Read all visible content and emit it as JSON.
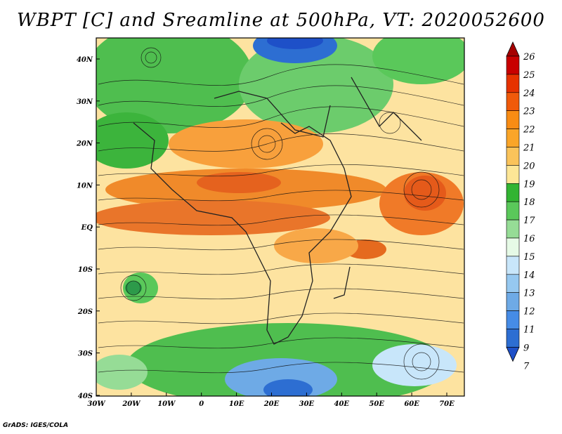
{
  "title": "WBPT [C] and Sreamline at 500hPa, VT: 2020052600",
  "footer": "GrADS: IGES/COLA",
  "lat_labels": [
    "40N",
    "30N",
    "20N",
    "10N",
    "EQ",
    "10S",
    "20S",
    "30S",
    "40S"
  ],
  "lon_labels": [
    "30W",
    "20W",
    "10W",
    "0",
    "10E",
    "20E",
    "30E",
    "40E",
    "50E",
    "60E",
    "70E"
  ],
  "colorbar": {
    "levels": [
      "26",
      "25",
      "24",
      "23",
      "22",
      "21",
      "20",
      "19",
      "18",
      "17",
      "16",
      "15",
      "14",
      "13",
      "12",
      "11",
      "9",
      "7"
    ],
    "colors": [
      "#a50000",
      "#c80000",
      "#e63200",
      "#f05a0a",
      "#f88c14",
      "#faa528",
      "#fac35a",
      "#fde696",
      "#32b432",
      "#5ac85a",
      "#96dc96",
      "#e6fae6",
      "#c8e6fa",
      "#96c8f0",
      "#6eaae6",
      "#468ce6",
      "#2d6ed2",
      "#1e50c8"
    ]
  },
  "map": {
    "type": "shaded field with streamlines",
    "projection": "latlon",
    "lon_range": [
      -30,
      75
    ],
    "lat_range": [
      -40,
      45
    ]
  }
}
